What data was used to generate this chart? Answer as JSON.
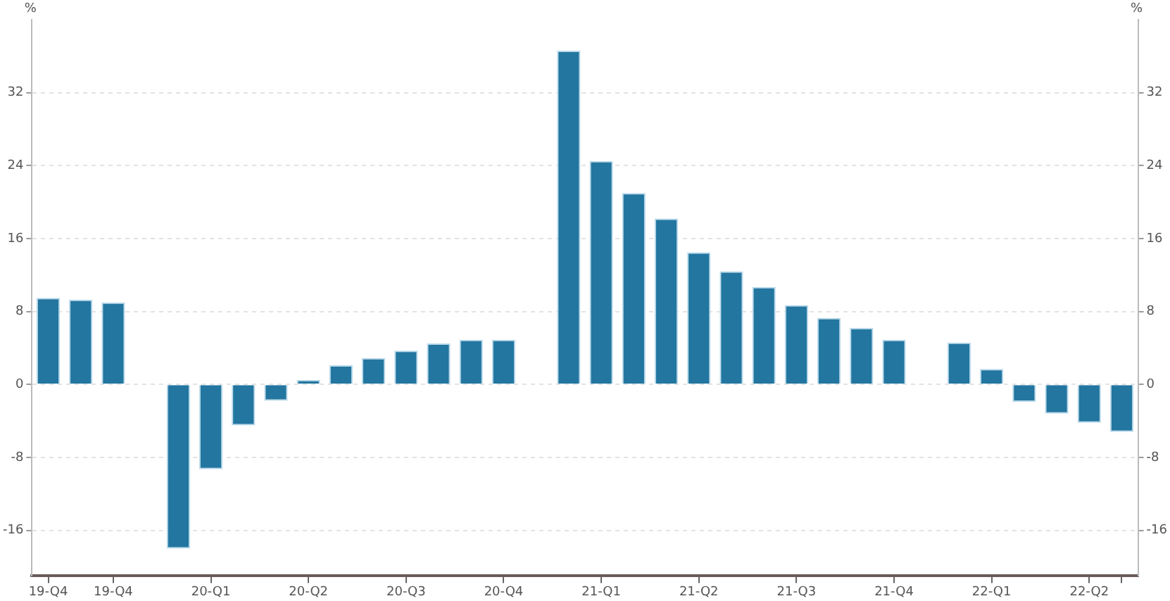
{
  "chart_data": {
    "type": "bar",
    "ylabel": "%",
    "y2label": "%",
    "categories": [
      "19-Q4",
      null,
      "19-Q4",
      null,
      null,
      "20-Q1",
      null,
      null,
      "20-Q2",
      null,
      null,
      "20-Q3",
      null,
      null,
      "20-Q4",
      null,
      null,
      "21-Q1",
      null,
      null,
      "21-Q2",
      null,
      null,
      "21-Q3",
      null,
      null,
      "21-Q4",
      null,
      null,
      "22-Q1",
      null,
      null,
      "22-Q2",
      null
    ],
    "series": [
      {
        "color": "#2276a0",
        "values": [
          9.5,
          9.3,
          9.0,
          null,
          -18.0,
          -9.3,
          -4.5,
          -1.8,
          0.5,
          2.1,
          2.9,
          3.7,
          4.5,
          4.9,
          4.9,
          null,
          36.6,
          24.5,
          21.0,
          18.2,
          14.5,
          12.4,
          10.7,
          8.7,
          7.3,
          6.2,
          4.9,
          null,
          4.6,
          1.7,
          -1.9,
          -3.2,
          -4.2,
          -5.2
        ]
      }
    ],
    "ylim": [
      -21,
      40
    ],
    "yticks": [
      -16,
      -8,
      0,
      8,
      16,
      24,
      32
    ],
    "y2lim": [
      -21,
      40
    ],
    "y2ticks": [
      -16,
      -8,
      0,
      8,
      16,
      24,
      32
    ],
    "grid": "y",
    "legend": false
  }
}
